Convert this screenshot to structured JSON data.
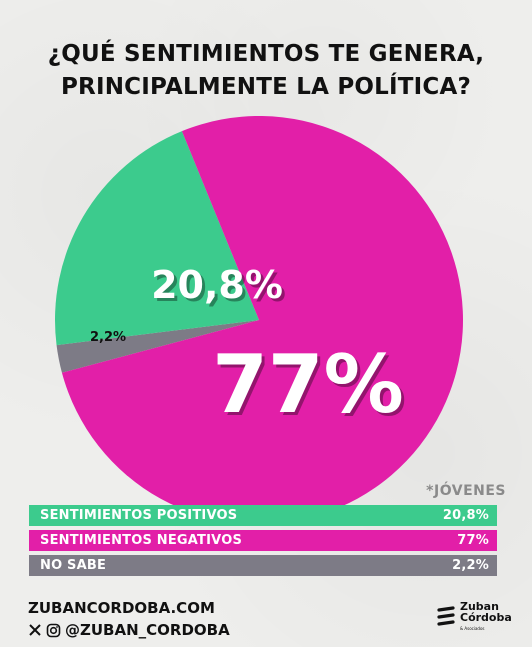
{
  "title_lines": [
    "¿QUÉ SENTIMIENTOS TE GENERA,",
    "PRINCIPALMENTE LA POLÍTICA?"
  ],
  "tag": "*JÓVENES",
  "chart_data": {
    "type": "pie",
    "title": "¿QUÉ SENTIMIENTOS TE GENERA, PRINCIPALMENTE LA POLÍTICA?",
    "slices": [
      {
        "name": "SENTIMIENTOS POSITIVOS",
        "value": 20.8,
        "label": "20,8%",
        "color": "#3ccb8d"
      },
      {
        "name": "SENTIMIENTOS NEGATIVOS",
        "value": 77,
        "label": "77%",
        "color": "#e21fa8"
      },
      {
        "name": "NO SABE",
        "value": 2.2,
        "label": "2,2%",
        "color": "#7d7b86"
      }
    ]
  },
  "legend": [
    {
      "label": "SENTIMIENTOS POSITIVOS",
      "value": "20,8%",
      "color": "#3ccb8d"
    },
    {
      "label": "SENTIMIENTOS NEGATIVOS",
      "value": "77%",
      "color": "#e21fa8"
    },
    {
      "label": "NO SABE",
      "value": "2,2%",
      "color": "#7d7b86"
    }
  ],
  "footer": {
    "website": "ZUBANCORDOBA.COM",
    "handle": "@ZUBAN_CORDOBA",
    "logo_line1": "Zuban",
    "logo_line2": "Córdoba",
    "logo_line3": "& Asociados"
  }
}
